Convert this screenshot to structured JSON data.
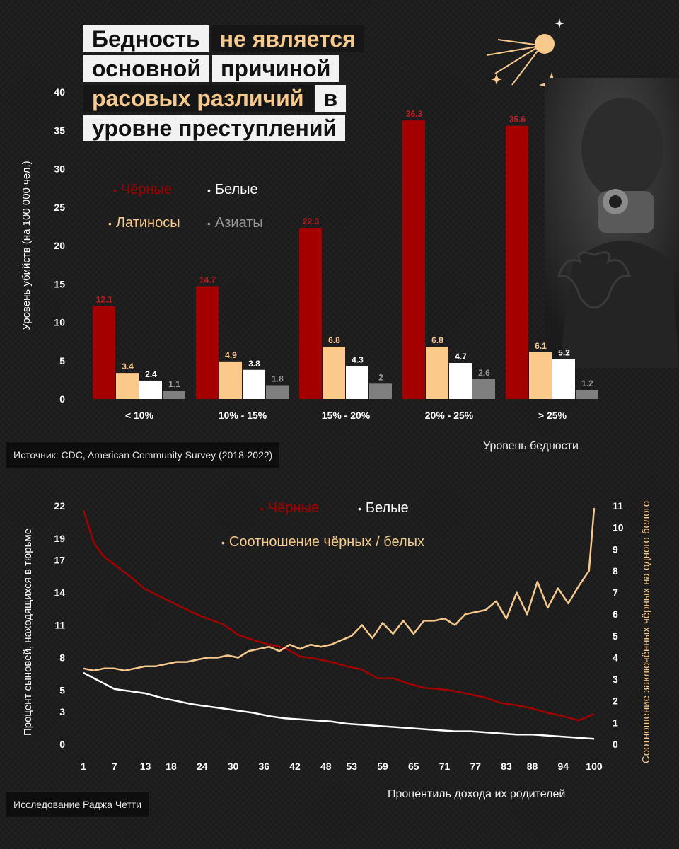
{
  "title": {
    "lines": [
      [
        {
          "text": "Бедность",
          "style": "light"
        },
        {
          "text": "не является",
          "style": "dark"
        }
      ],
      [
        {
          "text": "основной",
          "style": "light"
        },
        {
          "text": "причиной",
          "style": "light"
        }
      ],
      [
        {
          "text": "расовых различий",
          "style": "dark"
        },
        {
          "text": "в",
          "style": "light"
        }
      ],
      [
        {
          "text": "уровне преступлений",
          "style": "light"
        }
      ]
    ]
  },
  "sources": {
    "top": "Источник: CDC, American Community Survey (2018-2022)",
    "bottom": "Исследование Раджа Четти"
  },
  "colors": {
    "black": "#a50000",
    "white": "#ffffff",
    "latino": "#fbc98a",
    "asian": "#7f7f7f",
    "ratio": "#f7c98c",
    "background": "#1b1b1b"
  },
  "icons": [
    "sputnik-icon",
    "sparkle-icon",
    "bull-logo-icon"
  ],
  "chart_data": [
    {
      "type": "bar",
      "title": "Бедность не является основной причиной расовых различий в уровне преступлений",
      "xlabel": "Уровень бедности",
      "ylabel": "Уровень убийств (на 100 000 чел.)",
      "categories": [
        "< 10%",
        "10% - 15%",
        "15% - 20%",
        "20% - 25%",
        "> 25%"
      ],
      "ylim": [
        0,
        40
      ],
      "yticks": [
        0,
        5,
        10,
        15,
        20,
        25,
        30,
        35,
        40
      ],
      "grid": false,
      "legend_position": "top-left",
      "series": [
        {
          "name": "Чёрные",
          "color": "#a50000",
          "values": [
            12.1,
            14.7,
            22.3,
            36.3,
            35.6
          ]
        },
        {
          "name": "Латиносы",
          "color": "#fbc98a",
          "values": [
            3.4,
            4.9,
            6.8,
            6.8,
            6.1
          ]
        },
        {
          "name": "Белые",
          "color": "#ffffff",
          "values": [
            2.4,
            3.8,
            4.3,
            4.7,
            5.2
          ]
        },
        {
          "name": "Азиаты",
          "color": "#7f7f7f",
          "values": [
            1.1,
            1.8,
            2,
            2.6,
            1.2
          ]
        }
      ],
      "legend_order": [
        "Чёрные",
        "Белые",
        "Латиносы",
        "Азиаты"
      ]
    },
    {
      "type": "line",
      "xlabel": "Процентиль дохода их родителей",
      "ylabel": "Процент сыновей, находящихся в тюрьме",
      "ylabel_right": "Соотношение заключённых чёрных на одного белого",
      "xlim": [
        1,
        100
      ],
      "xticks": [
        1,
        7,
        13,
        18,
        24,
        30,
        36,
        42,
        48,
        53,
        59,
        65,
        71,
        77,
        83,
        88,
        94,
        100
      ],
      "ylim": [
        0,
        22
      ],
      "yticks": [
        0,
        3,
        5,
        8,
        11,
        14,
        17,
        19,
        22
      ],
      "ylim_right": [
        0,
        11
      ],
      "yticks_right": [
        0,
        1,
        2,
        3,
        4,
        5,
        6,
        7,
        8,
        9,
        10,
        11
      ],
      "grid": false,
      "legend_position": "top-center",
      "series": [
        {
          "name": "Чёрные",
          "axis": "left",
          "color": "#a50000",
          "x": [
            1,
            3,
            5,
            7,
            10,
            13,
            16,
            19,
            22,
            25,
            28,
            31,
            34,
            37,
            40,
            43,
            46,
            49,
            52,
            55,
            58,
            61,
            64,
            67,
            70,
            73,
            76,
            79,
            82,
            85,
            88,
            91,
            94,
            97,
            100
          ],
          "values": [
            21.6,
            18.6,
            17.3,
            16.6,
            15.5,
            14.3,
            13.6,
            12.9,
            12.2,
            11.6,
            11.1,
            10.1,
            9.6,
            9.2,
            8.9,
            8.1,
            7.9,
            7.6,
            7.2,
            6.9,
            6.1,
            6.1,
            5.6,
            5.2,
            5.1,
            4.9,
            4.6,
            4.3,
            3.8,
            3.6,
            3.3,
            2.9,
            2.6,
            2.2,
            2.8
          ]
        },
        {
          "name": "Белые",
          "axis": "left",
          "color": "#ffffff",
          "x": [
            1,
            3,
            5,
            7,
            10,
            13,
            16,
            19,
            22,
            25,
            28,
            31,
            34,
            37,
            40,
            43,
            46,
            49,
            52,
            55,
            58,
            61,
            64,
            67,
            70,
            73,
            76,
            79,
            82,
            85,
            88,
            91,
            94,
            97,
            100
          ],
          "values": [
            6.6,
            6.1,
            5.6,
            5.1,
            4.9,
            4.7,
            4.3,
            4.0,
            3.7,
            3.5,
            3.3,
            3.1,
            2.9,
            2.6,
            2.4,
            2.3,
            2.2,
            2.1,
            1.9,
            1.8,
            1.7,
            1.6,
            1.5,
            1.4,
            1.3,
            1.2,
            1.2,
            1.1,
            1.0,
            0.9,
            0.9,
            0.8,
            0.7,
            0.6,
            0.5
          ]
        },
        {
          "name": "Соотношение чёрных / белых",
          "axis": "right",
          "color": "#f7c98c",
          "x": [
            1,
            3,
            5,
            7,
            9,
            11,
            13,
            15,
            17,
            19,
            21,
            23,
            25,
            27,
            29,
            31,
            33,
            35,
            37,
            39,
            41,
            43,
            45,
            47,
            49,
            51,
            53,
            55,
            57,
            59,
            61,
            63,
            65,
            67,
            69,
            71,
            73,
            75,
            77,
            79,
            81,
            83,
            85,
            87,
            89,
            91,
            93,
            95,
            97,
            99,
            100
          ],
          "values": [
            3.5,
            3.4,
            3.5,
            3.5,
            3.4,
            3.5,
            3.6,
            3.6,
            3.7,
            3.8,
            3.8,
            3.9,
            4.0,
            4.0,
            4.1,
            4.0,
            4.3,
            4.4,
            4.5,
            4.3,
            4.6,
            4.4,
            4.6,
            4.5,
            4.6,
            4.8,
            5.0,
            5.5,
            4.9,
            5.6,
            5.1,
            5.7,
            5.1,
            5.7,
            5.7,
            5.8,
            5.5,
            6.0,
            6.1,
            6.2,
            6.6,
            5.8,
            7.0,
            6.0,
            7.5,
            6.3,
            7.2,
            6.5,
            7.3,
            8.0,
            10.9
          ]
        }
      ]
    }
  ]
}
